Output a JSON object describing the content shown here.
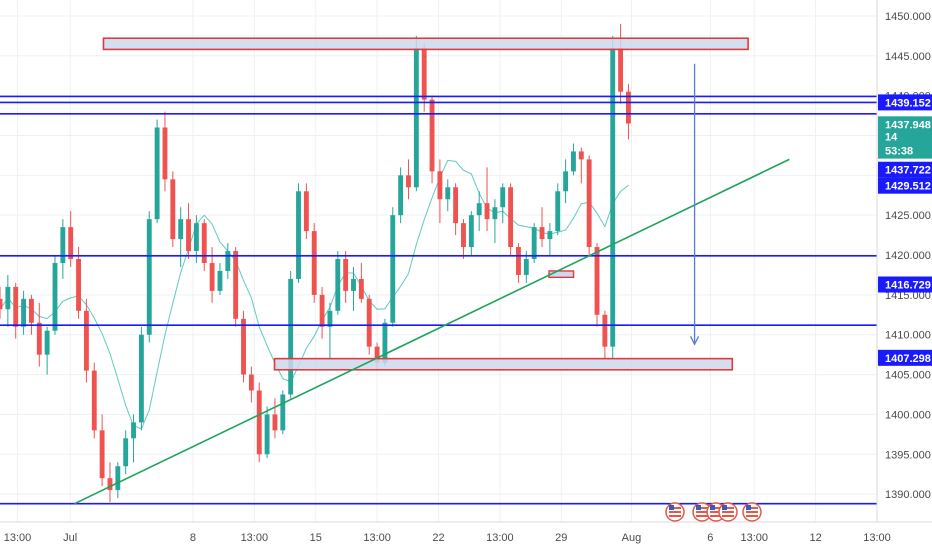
{
  "chart_data": {
    "type": "candlestick",
    "ylim": [
      1386.5,
      1452.0
    ],
    "xlim": [
      0,
      100
    ],
    "grid": true,
    "colors": {
      "up": "#26a69a",
      "down": "#ef5350",
      "ma": "#5fc9c3",
      "level_line": "#1a1aff",
      "trend_line": "#1fa35a",
      "zone_fill": "#cdd8ee",
      "zone_stroke": "#e03a3a",
      "arrow": "#5a7bd0",
      "price_tag": "#1a1aff",
      "current_tag": "#26a69a"
    },
    "y_ticks": [
      "1390.000",
      "1395.000",
      "1400.000",
      "1405.000",
      "1410.000",
      "1415.000",
      "1420.000",
      "1425.000",
      "1430.000",
      "1435.000",
      "1440.000",
      "1445.000",
      "1450.000"
    ],
    "y_tick_values": [
      1390,
      1395,
      1400,
      1405,
      1410,
      1415,
      1420,
      1425,
      1430,
      1435,
      1440,
      1445,
      1450
    ],
    "x_ticks": [
      {
        "label": "13:00",
        "x": 2
      },
      {
        "label": "Jul",
        "x": 8
      },
      {
        "label": "8",
        "x": 22
      },
      {
        "label": "13:00",
        "x": 29
      },
      {
        "label": "15",
        "x": 36
      },
      {
        "label": "13:00",
        "x": 43
      },
      {
        "label": "22",
        "x": 50
      },
      {
        "label": "13:00",
        "x": 57
      },
      {
        "label": "29",
        "x": 64
      },
      {
        "label": "Aug",
        "x": 72
      },
      {
        "label": "6",
        "x": 81
      },
      {
        "label": "13:00",
        "x": 86
      },
      {
        "label": "12",
        "x": 93
      },
      {
        "label": "13:00",
        "x": 100
      }
    ],
    "horizontal_levels": [
      1439.9,
      1439.152,
      1437.722,
      1419.9,
      1411.2,
      1388.8
    ],
    "zones": [
      {
        "x0": 11.8,
        "x1": 85.3,
        "y0": 1445.8,
        "y1": 1447.2
      },
      {
        "x0": 31.3,
        "x1": 83.5,
        "y0": 1405.6,
        "y1": 1407.0
      }
    ],
    "small_box": {
      "x0": 62.6,
      "x1": 65.4,
      "y0": 1417.2,
      "y1": 1418.0
    },
    "trendline": {
      "x0": 8.5,
      "y0": 1388.8,
      "x1": 90,
      "y1": 1432.0
    },
    "arrow": {
      "x": 79.2,
      "y_from": 1444.0,
      "y_to": 1408.8
    },
    "price_tags": [
      {
        "label": "1439.152",
        "value": 1439.152,
        "kind": "level"
      },
      {
        "label": "1437.948",
        "value": 1436.4,
        "kind": "current"
      },
      {
        "label": "14",
        "value": 1434.9,
        "kind": "partial"
      },
      {
        "label": "53:38",
        "value": 1433.1,
        "kind": "timer"
      },
      {
        "label": "1437.722",
        "value": 1430.7,
        "kind": "level"
      },
      {
        "label": "1429.512",
        "value": 1428.7,
        "kind": "level"
      },
      {
        "label": "1416.729",
        "value": 1416.3,
        "kind": "level"
      },
      {
        "label": "1407.298",
        "value": 1407.1,
        "kind": "level"
      }
    ],
    "ohlc": [
      [
        1414.5,
        1416.0,
        1412.0,
        1413.2
      ],
      [
        1413.2,
        1417.5,
        1411.0,
        1416.0
      ],
      [
        1416.0,
        1416.5,
        1409.5,
        1411.0
      ],
      [
        1411.0,
        1415.5,
        1410.0,
        1414.5
      ],
      [
        1414.5,
        1415.0,
        1410.0,
        1411.5
      ],
      [
        1411.5,
        1414.0,
        1406.0,
        1407.5
      ],
      [
        1407.5,
        1411.0,
        1405.0,
        1410.5
      ],
      [
        1410.5,
        1420.0,
        1410.0,
        1419.0
      ],
      [
        1419.0,
        1424.5,
        1417.0,
        1423.5
      ],
      [
        1423.5,
        1425.5,
        1418.5,
        1419.5
      ],
      [
        1419.5,
        1421.0,
        1412.0,
        1413.0
      ],
      [
        1413.0,
        1414.5,
        1404.0,
        1405.5
      ],
      [
        1405.5,
        1406.5,
        1397.0,
        1398.0
      ],
      [
        1398.0,
        1400.0,
        1391.0,
        1392.0
      ],
      [
        1392.0,
        1394.0,
        1389.0,
        1390.5
      ],
      [
        1390.5,
        1394.0,
        1389.5,
        1393.5
      ],
      [
        1393.5,
        1398.0,
        1392.5,
        1397.0
      ],
      [
        1397.0,
        1400.0,
        1394.0,
        1399.0
      ],
      [
        1399.0,
        1411.0,
        1398.0,
        1410.0
      ],
      [
        1410.0,
        1425.5,
        1409.0,
        1424.5
      ],
      [
        1424.5,
        1437.0,
        1424.0,
        1436.0
      ],
      [
        1436.0,
        1438.0,
        1428.0,
        1429.5
      ],
      [
        1429.5,
        1430.5,
        1421.0,
        1422.0
      ],
      [
        1422.0,
        1426.0,
        1418.5,
        1424.5
      ],
      [
        1424.5,
        1426.5,
        1419.5,
        1420.5
      ],
      [
        1420.5,
        1425.0,
        1419.0,
        1424.0
      ],
      [
        1424.0,
        1424.5,
        1418.0,
        1419.0
      ],
      [
        1419.0,
        1421.0,
        1414.0,
        1415.5
      ],
      [
        1415.5,
        1419.0,
        1415.0,
        1418.0
      ],
      [
        1418.0,
        1421.5,
        1417.0,
        1420.5
      ],
      [
        1420.5,
        1421.0,
        1411.0,
        1412.0
      ],
      [
        1412.0,
        1413.0,
        1404.0,
        1405.0
      ],
      [
        1405.0,
        1406.0,
        1401.5,
        1403.0
      ],
      [
        1403.0,
        1404.0,
        1394.0,
        1395.0
      ],
      [
        1395.0,
        1401.0,
        1394.5,
        1400.0
      ],
      [
        1400.0,
        1402.0,
        1397.0,
        1398.0
      ],
      [
        1398.0,
        1403.0,
        1397.5,
        1402.5
      ],
      [
        1402.5,
        1418.0,
        1402.0,
        1417.0
      ],
      [
        1417.0,
        1429.0,
        1416.5,
        1428.0
      ],
      [
        1428.0,
        1429.0,
        1422.0,
        1423.0
      ],
      [
        1423.0,
        1424.0,
        1414.0,
        1415.0
      ],
      [
        1415.0,
        1416.0,
        1409.5,
        1411.0
      ],
      [
        1411.0,
        1414.0,
        1407.0,
        1413.0
      ],
      [
        1413.0,
        1420.5,
        1412.5,
        1419.5
      ],
      [
        1419.5,
        1420.5,
        1414.0,
        1415.5
      ],
      [
        1415.5,
        1418.5,
        1413.0,
        1417.0
      ],
      [
        1417.0,
        1419.0,
        1414.0,
        1414.5
      ],
      [
        1414.5,
        1415.0,
        1407.5,
        1408.5
      ],
      [
        1408.5,
        1409.0,
        1405.5,
        1406.5
      ],
      [
        1406.5,
        1412.0,
        1406.0,
        1411.5
      ],
      [
        1411.5,
        1426.0,
        1411.0,
        1425.0
      ],
      [
        1425.0,
        1431.0,
        1424.0,
        1430.0
      ],
      [
        1430.0,
        1432.0,
        1427.0,
        1428.5
      ],
      [
        1428.5,
        1447.5,
        1428.0,
        1446.0
      ],
      [
        1446.0,
        1446.5,
        1438.0,
        1439.5
      ],
      [
        1439.5,
        1440.0,
        1429.0,
        1430.5
      ],
      [
        1430.5,
        1432.0,
        1424.0,
        1427.0
      ],
      [
        1427.0,
        1429.5,
        1425.5,
        1428.5
      ],
      [
        1428.5,
        1429.0,
        1422.5,
        1424.0
      ],
      [
        1424.0,
        1424.5,
        1419.5,
        1421.0
      ],
      [
        1421.0,
        1425.5,
        1420.0,
        1425.0
      ],
      [
        1425.0,
        1428.0,
        1423.0,
        1426.5
      ],
      [
        1426.5,
        1431.0,
        1423.0,
        1424.5
      ],
      [
        1424.5,
        1427.0,
        1421.5,
        1426.0
      ],
      [
        1426.0,
        1429.0,
        1424.0,
        1428.5
      ],
      [
        1428.5,
        1429.0,
        1420.0,
        1421.0
      ],
      [
        1421.0,
        1421.5,
        1416.5,
        1417.5
      ],
      [
        1417.5,
        1420.5,
        1416.5,
        1419.5
      ],
      [
        1419.5,
        1424.0,
        1419.0,
        1423.5
      ],
      [
        1423.5,
        1426.0,
        1421.0,
        1422.0
      ],
      [
        1422.0,
        1424.0,
        1420.0,
        1423.0
      ],
      [
        1423.0,
        1429.0,
        1422.5,
        1428.0
      ],
      [
        1428.0,
        1432.0,
        1426.5,
        1430.5
      ],
      [
        1430.5,
        1434.0,
        1430.0,
        1433.0
      ],
      [
        1433.0,
        1433.5,
        1429.0,
        1432.0
      ],
      [
        1432.0,
        1432.5,
        1420.0,
        1421.0
      ],
      [
        1421.0,
        1421.5,
        1411.0,
        1412.5
      ],
      [
        1412.5,
        1413.0,
        1407.0,
        1408.5
      ],
      [
        1408.5,
        1447.5,
        1407.0,
        1446.0
      ],
      [
        1446.0,
        1449.0,
        1439.0,
        1440.5
      ],
      [
        1440.5,
        1441.5,
        1434.5,
        1436.5
      ]
    ]
  }
}
